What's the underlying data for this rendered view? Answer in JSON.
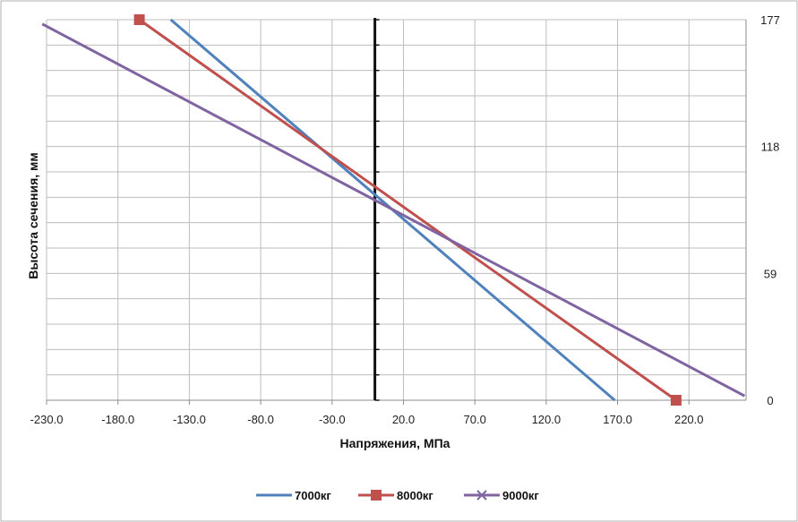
{
  "chart_data": {
    "type": "line",
    "title": "",
    "xlabel": "Напряжения, МПа",
    "ylabel": "Высота сечения, мм",
    "xlim": [
      -230,
      260
    ],
    "ylim": [
      0,
      177
    ],
    "x_ticks": [
      -230,
      -180,
      -130,
      -80,
      -30,
      20,
      70,
      120,
      170,
      220
    ],
    "x_tick_labels": [
      "-230.0",
      "-180.0",
      "-130.0",
      "-80.0",
      "-30.0",
      "20.0",
      "70.0",
      "120.0",
      "170.0",
      "220.0"
    ],
    "y_ticks": [
      0,
      59,
      118,
      177
    ],
    "y_tick_labels": [
      "0",
      "59",
      "118",
      "177"
    ],
    "y_axis_position": "right",
    "grid": true,
    "zero_line": true,
    "legend_position": "bottom",
    "series": [
      {
        "name": "7000кг",
        "color": "#4f81bd",
        "marker": "none",
        "x": [
          -143,
          168
        ],
        "y": [
          177,
          0
        ]
      },
      {
        "name": "8000кг",
        "color": "#c0504d",
        "marker": "square",
        "x": [
          -165,
          211
        ],
        "y": [
          177,
          0
        ]
      },
      {
        "name": "9000кг",
        "color": "#8064a2",
        "marker": "x",
        "x": [
          -233,
          259
        ],
        "y": [
          175,
          2
        ]
      }
    ]
  }
}
